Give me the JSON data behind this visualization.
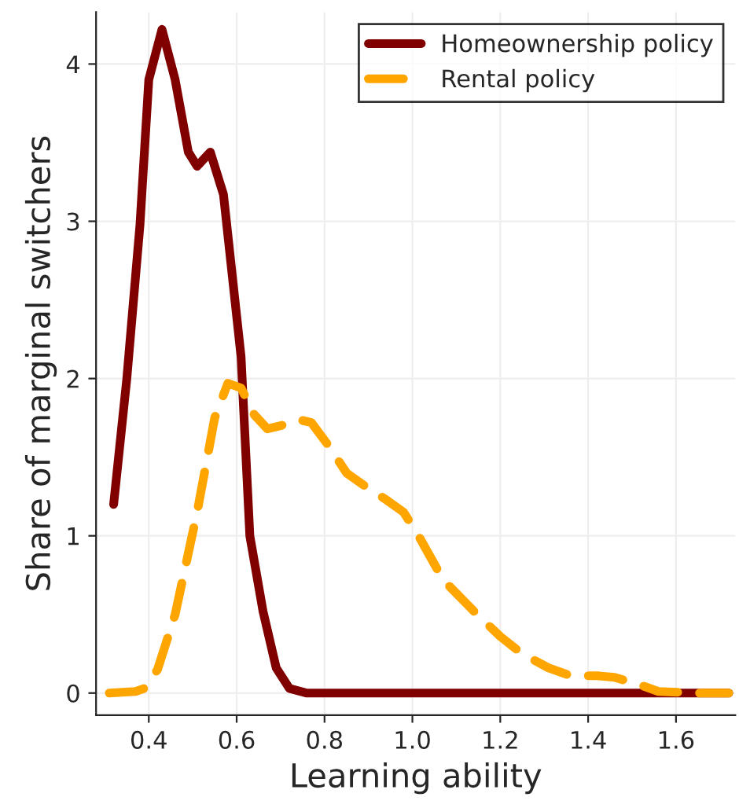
{
  "chart_data": {
    "type": "line",
    "xlabel": "Learning ability",
    "ylabel": "Share of marginal switchers",
    "xlim": [
      0.28,
      1.735
    ],
    "ylim": [
      -0.14,
      4.33
    ],
    "xticks": [
      {
        "value": 0.4,
        "label": "0.4"
      },
      {
        "value": 0.6,
        "label": "0.6"
      },
      {
        "value": 0.8,
        "label": "0.8"
      },
      {
        "value": 1.0,
        "label": "1.0"
      },
      {
        "value": 1.2,
        "label": "1.2"
      },
      {
        "value": 1.4,
        "label": "1.4"
      },
      {
        "value": 1.6,
        "label": "1.6"
      }
    ],
    "yticks": [
      0,
      1,
      2,
      3,
      4
    ],
    "grid": true,
    "legend": "top right",
    "series": [
      {
        "name": "Homeownership policy",
        "color": "#800000",
        "line_style": "solid",
        "x": [
          0.32,
          0.35,
          0.38,
          0.4,
          0.43,
          0.46,
          0.49,
          0.51,
          0.54,
          0.57,
          0.61,
          0.63,
          0.66,
          0.69,
          0.72,
          0.76,
          1.0,
          1.4,
          1.72
        ],
        "values": [
          1.2,
          2.0,
          2.98,
          3.9,
          4.22,
          3.9,
          3.44,
          3.35,
          3.44,
          3.17,
          2.14,
          1.0,
          0.52,
          0.16,
          0.03,
          0,
          0,
          0,
          0
        ]
      },
      {
        "name": "Rental policy",
        "color": "#ffa500",
        "line_style": "dashed",
        "x": [
          0.31,
          0.37,
          0.39,
          0.42,
          0.46,
          0.51,
          0.55,
          0.58,
          0.61,
          0.64,
          0.67,
          0.7,
          0.74,
          0.77,
          0.81,
          0.85,
          0.89,
          0.94,
          0.98,
          1.01,
          1.07,
          1.14,
          1.2,
          1.25,
          1.31,
          1.36,
          1.42,
          1.46,
          1.52,
          1.56,
          1.65,
          1.72
        ],
        "values": [
          0,
          0.01,
          0.03,
          0.15,
          0.5,
          1.15,
          1.75,
          1.97,
          1.94,
          1.77,
          1.68,
          1.7,
          1.74,
          1.72,
          1.57,
          1.4,
          1.32,
          1.23,
          1.15,
          1.02,
          0.72,
          0.52,
          0.36,
          0.25,
          0.16,
          0.11,
          0.11,
          0.1,
          0.05,
          0.01,
          0,
          0
        ]
      }
    ]
  }
}
